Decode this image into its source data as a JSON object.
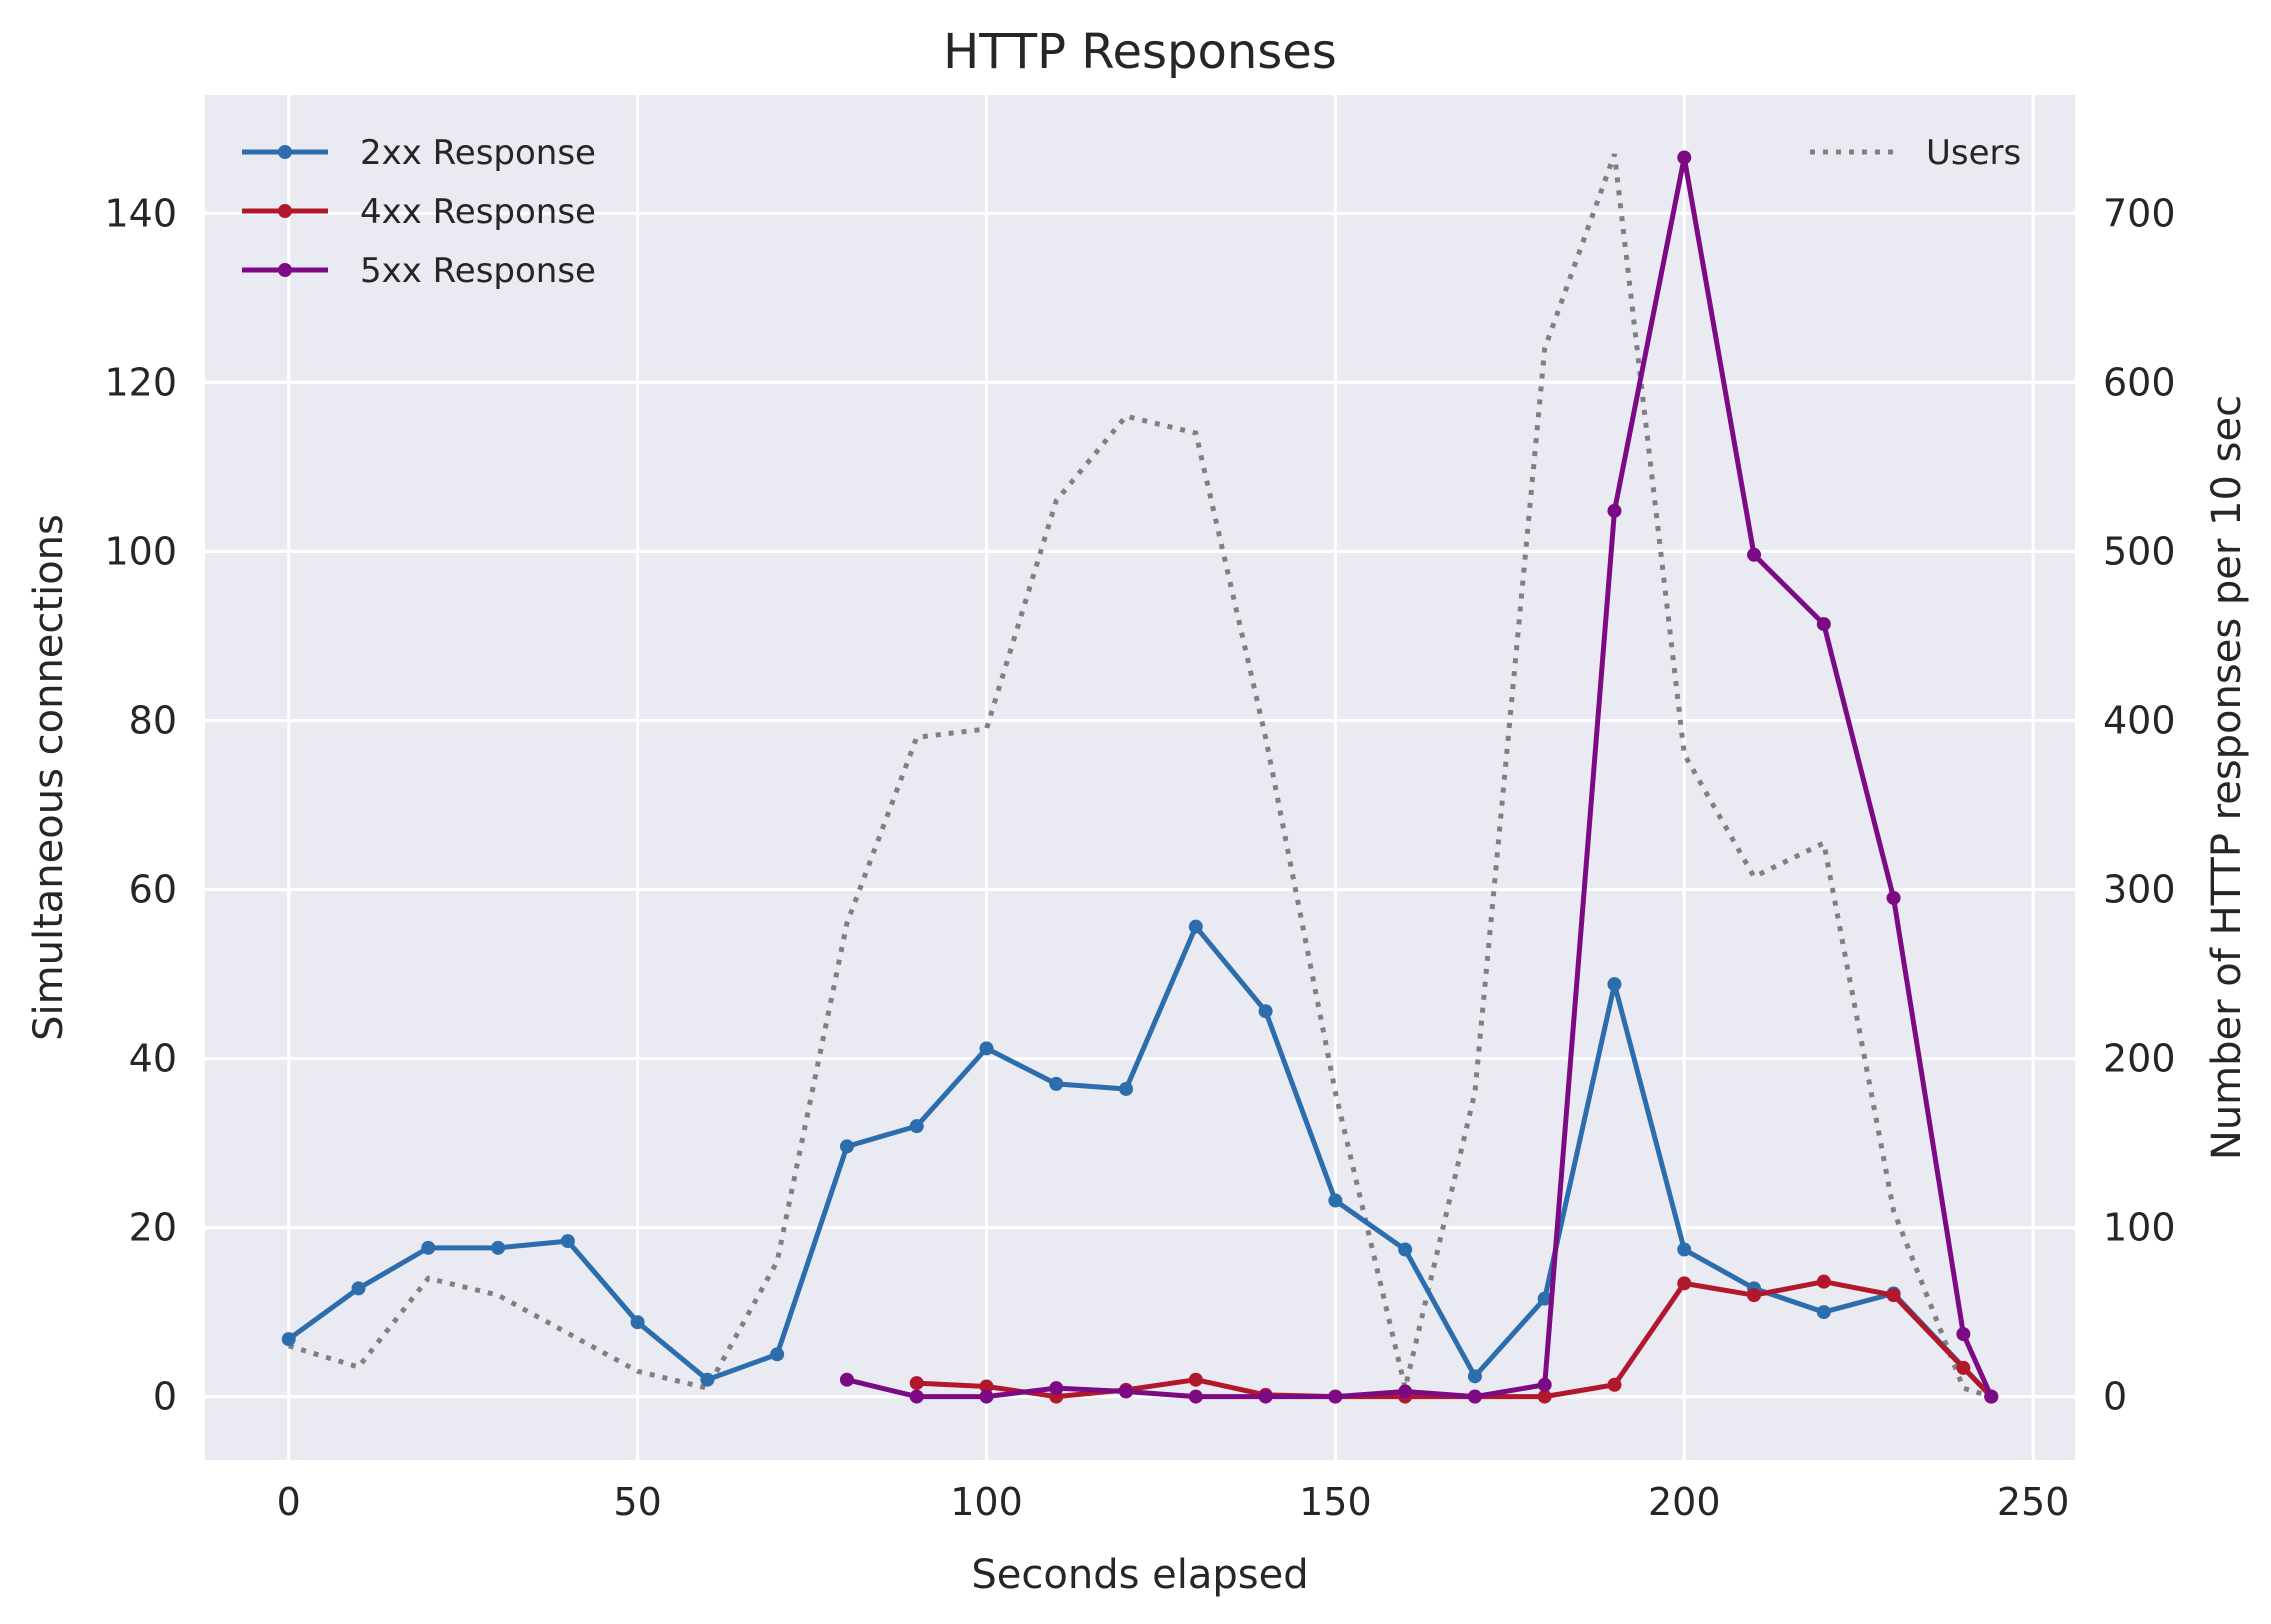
{
  "chart_data": {
    "type": "line",
    "title": "HTTP Responses",
    "xlabel": "Seconds elapsed",
    "ylabel_left": "Simultaneous connections",
    "ylabel_right": "Number of HTTP responses per 10 sec",
    "xlim": [
      -12,
      256
    ],
    "ylim_left": [
      -7.5,
      154
    ],
    "ylim_right": [
      -37.5,
      770
    ],
    "x_ticks": [
      0,
      50,
      100,
      150,
      200,
      250
    ],
    "y_ticks_left": [
      0,
      20,
      40,
      60,
      80,
      100,
      120,
      140
    ],
    "y_ticks_right": [
      0,
      100,
      200,
      300,
      400,
      500,
      600,
      700
    ],
    "grid": true,
    "background": "#eaeaf2",
    "legend_left_position": "upper-left",
    "legend_right_position": "upper-right",
    "series_left": [
      {
        "name": "Users",
        "style": "dotted",
        "color": "#808080",
        "x": [
          0,
          10,
          20,
          30,
          40,
          50,
          60,
          70,
          80,
          90,
          100,
          110,
          120,
          130,
          140,
          150,
          160,
          170,
          180,
          190,
          200,
          210,
          220,
          230,
          240,
          244
        ],
        "y": [
          6,
          3.5,
          14,
          12,
          7.5,
          3,
          1,
          16,
          56,
          78,
          79,
          106,
          116,
          114,
          78,
          36,
          1,
          36,
          124,
          147,
          76,
          61.5,
          65.5,
          22,
          1,
          0
        ]
      }
    ],
    "series_right": [
      {
        "name": "2xx Response",
        "color": "#2b6dad",
        "x": [
          0,
          10,
          20,
          30,
          40,
          50,
          60,
          70,
          80,
          90,
          100,
          110,
          120,
          130,
          140,
          150,
          160,
          170,
          180,
          190,
          200,
          210,
          220,
          230,
          244
        ],
        "y": [
          34,
          64,
          88,
          88,
          92,
          44,
          10,
          25,
          148,
          160,
          206,
          185,
          182,
          278,
          228,
          116,
          87,
          12,
          58,
          244,
          87,
          64,
          50,
          61,
          0
        ]
      },
      {
        "name": "4xx Response",
        "color": "#b2182b",
        "x": [
          90,
          100,
          110,
          120,
          130,
          140,
          150,
          160,
          170,
          180,
          190,
          200,
          210,
          220,
          230,
          240,
          244
        ],
        "y": [
          8,
          6,
          0,
          4,
          10,
          1,
          0,
          0,
          0,
          0,
          7,
          67,
          60,
          68,
          60,
          17,
          0
        ]
      },
      {
        "name": "5xx Response",
        "color": "#7b0a84",
        "x": [
          80,
          90,
          100,
          110,
          120,
          130,
          140,
          150,
          160,
          170,
          180,
          190,
          200,
          210,
          220,
          230,
          240,
          244
        ],
        "y": [
          10,
          0,
          0,
          5,
          3,
          0,
          0,
          0,
          3,
          0,
          7,
          524,
          733,
          498,
          457,
          295,
          37,
          0
        ]
      }
    ]
  }
}
